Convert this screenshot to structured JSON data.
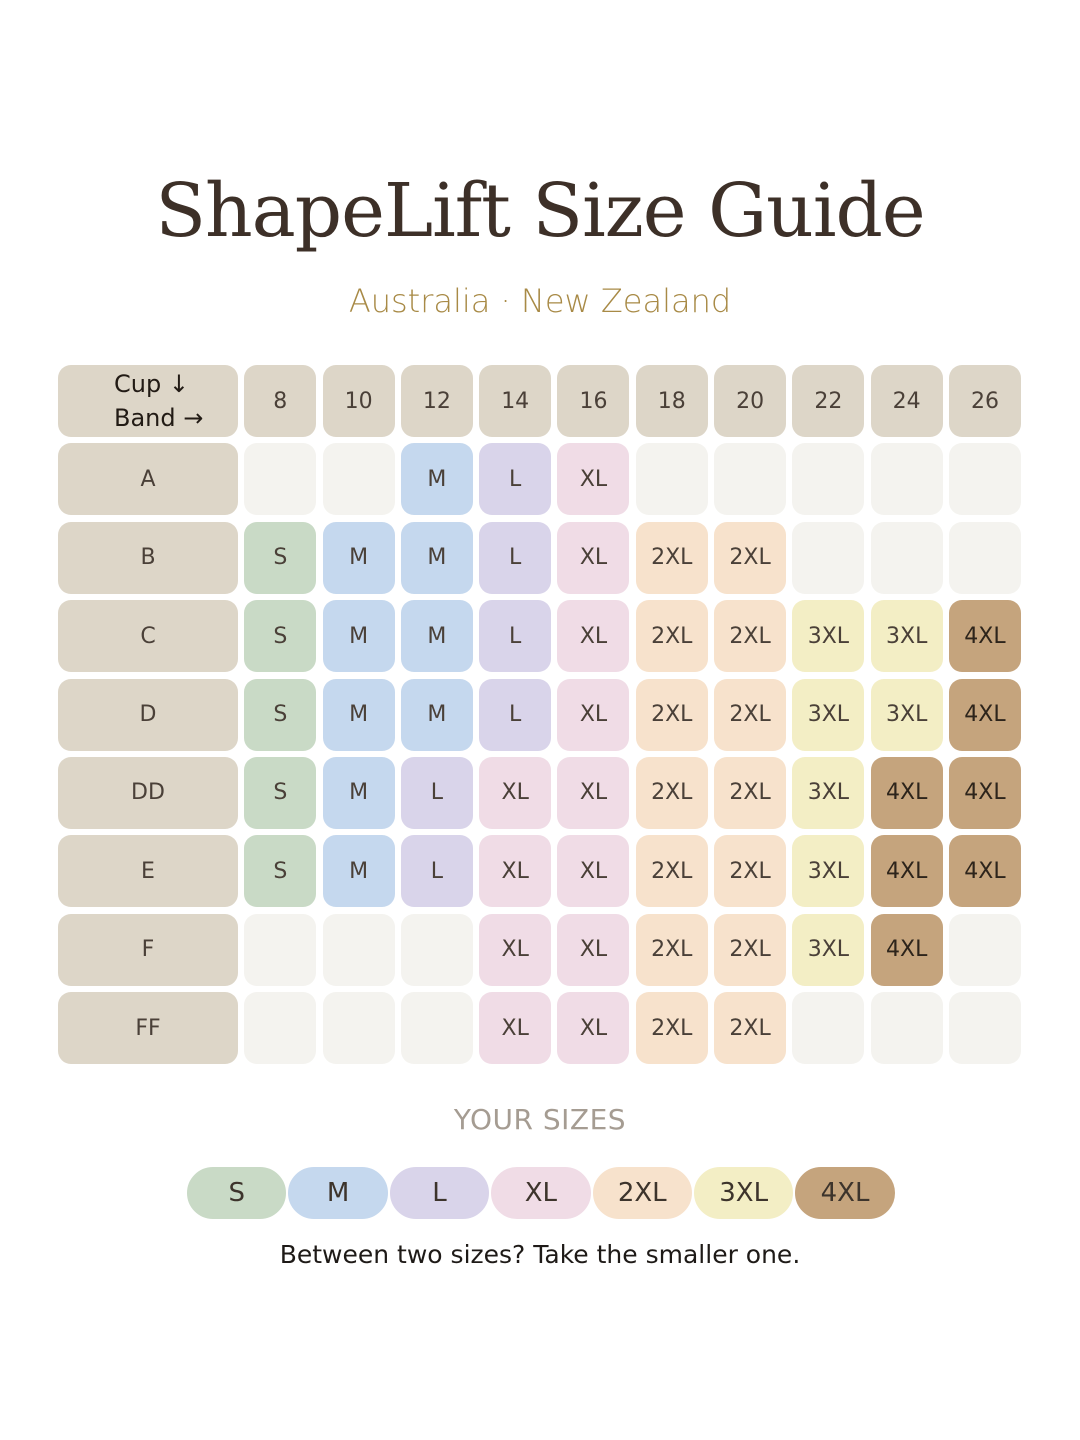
{
  "title": "ShapeLift Size Guide",
  "subtitle": "Australia · New Zealand",
  "corner": {
    "cup_label": "Cup ↓",
    "band_label": "Band →"
  },
  "bands": [
    "8",
    "10",
    "12",
    "14",
    "16",
    "18",
    "20",
    "22",
    "24",
    "26"
  ],
  "rows": [
    {
      "cup": "A",
      "sizes": [
        "",
        "",
        "M",
        "L",
        "XL",
        "",
        "",
        "",
        "",
        ""
      ]
    },
    {
      "cup": "B",
      "sizes": [
        "S",
        "M",
        "M",
        "L",
        "XL",
        "2XL",
        "2XL",
        "",
        "",
        ""
      ]
    },
    {
      "cup": "C",
      "sizes": [
        "S",
        "M",
        "M",
        "L",
        "XL",
        "2XL",
        "2XL",
        "3XL",
        "3XL",
        "4XL"
      ]
    },
    {
      "cup": "D",
      "sizes": [
        "S",
        "M",
        "M",
        "L",
        "XL",
        "2XL",
        "2XL",
        "3XL",
        "3XL",
        "4XL"
      ]
    },
    {
      "cup": "DD",
      "sizes": [
        "S",
        "M",
        "L",
        "XL",
        "XL",
        "2XL",
        "2XL",
        "3XL",
        "4XL",
        "4XL"
      ]
    },
    {
      "cup": "E",
      "sizes": [
        "S",
        "M",
        "L",
        "XL",
        "XL",
        "2XL",
        "2XL",
        "3XL",
        "4XL",
        "4XL"
      ]
    },
    {
      "cup": "F",
      "sizes": [
        "",
        "",
        "",
        "XL",
        "XL",
        "2XL",
        "2XL",
        "3XL",
        "4XL",
        ""
      ]
    },
    {
      "cup": "FF",
      "sizes": [
        "",
        "",
        "",
        "XL",
        "XL",
        "2XL",
        "2XL",
        "",
        "",
        ""
      ]
    }
  ],
  "your_sizes_heading": "YOUR SIZES",
  "legend": [
    "S",
    "M",
    "L",
    "XL",
    "2XL",
    "3XL",
    "4XL"
  ],
  "size_colors": {
    "S": "#c9dac6",
    "M": "#c5d8ee",
    "L": "#d9d4ea",
    "XL": "#f0dce6",
    "2XL": "#f7e2cc",
    "3XL": "#f3eec5",
    "4XL": "#c5a47d"
  },
  "note": "Between two sizes? Take the smaller one."
}
